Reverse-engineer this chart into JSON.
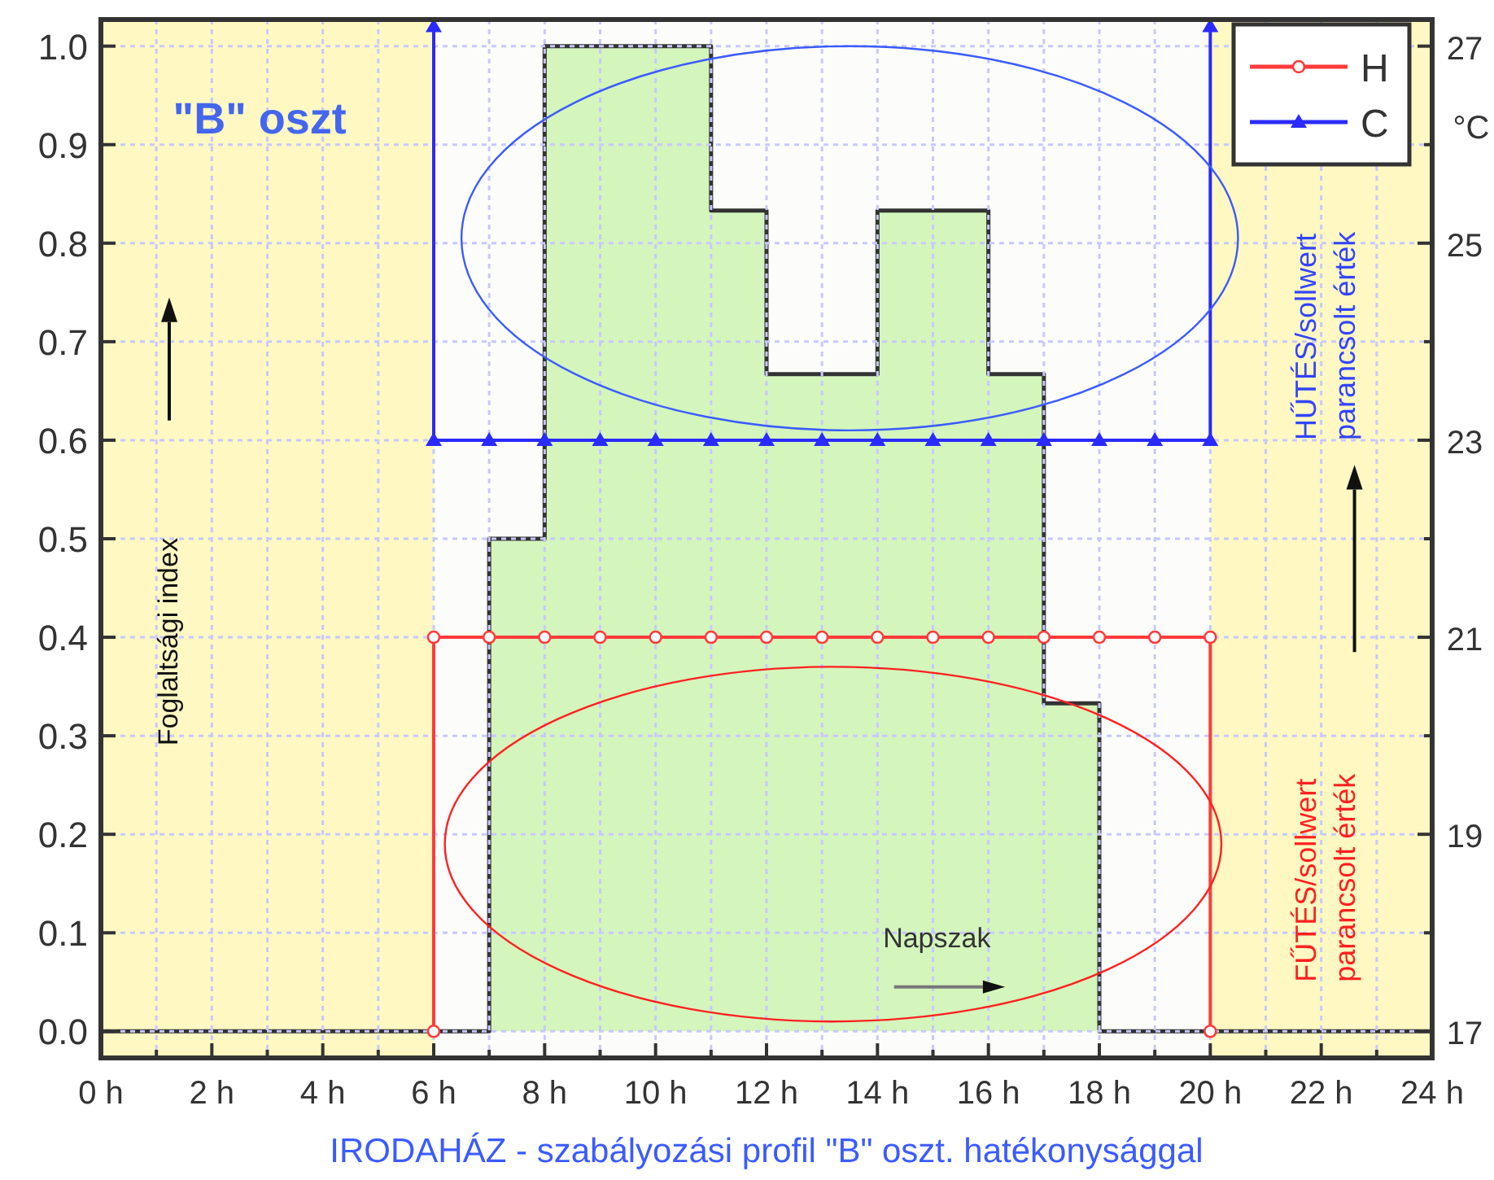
{
  "chart_data": {
    "type": "step",
    "xlabel": "IRODAHÁZ - szabályozási profil \"B\" oszt. hatékonysággal",
    "ylabel": "Foglaltsági index",
    "y2label": "°C",
    "xlim": [
      0,
      24
    ],
    "xticks": [
      {
        "value": 0,
        "label": "0 h"
      },
      {
        "value": 1,
        "label": null
      },
      {
        "value": 2,
        "label": "2 h"
      },
      {
        "value": 3,
        "label": null
      },
      {
        "value": 4,
        "label": "4 h"
      },
      {
        "value": 5,
        "label": null
      },
      {
        "value": 6,
        "label": "6 h"
      },
      {
        "value": 7,
        "label": null
      },
      {
        "value": 8,
        "label": "8 h"
      },
      {
        "value": 9,
        "label": null
      },
      {
        "value": 10,
        "label": "10 h"
      },
      {
        "value": 11,
        "label": null
      },
      {
        "value": 12,
        "label": "12 h"
      },
      {
        "value": 13,
        "label": null
      },
      {
        "value": 14,
        "label": "14 h"
      },
      {
        "value": 15,
        "label": null
      },
      {
        "value": 16,
        "label": "16 h"
      },
      {
        "value": 17,
        "label": null
      },
      {
        "value": 18,
        "label": "18 h"
      },
      {
        "value": 19,
        "label": null
      },
      {
        "value": 20,
        "label": "20 h"
      },
      {
        "value": 21,
        "label": null
      },
      {
        "value": 22,
        "label": "22 h"
      },
      {
        "value": 23,
        "label": null
      },
      {
        "value": 24,
        "label": "24 h"
      }
    ],
    "ylim": [
      -0.027,
      1.027
    ],
    "yticks": [
      {
        "value": 0,
        "label": "0.0"
      },
      {
        "value": 0.1,
        "label": "0.1"
      },
      {
        "value": 0.2,
        "label": "0.2"
      },
      {
        "value": 0.3,
        "label": "0.3"
      },
      {
        "value": 0.4,
        "label": "0.4"
      },
      {
        "value": 0.5,
        "label": "0.5"
      },
      {
        "value": 0.6,
        "label": "0.6"
      },
      {
        "value": 0.7,
        "label": "0.7"
      },
      {
        "value": 0.8,
        "label": "0.8"
      },
      {
        "value": 0.9,
        "label": "0.9"
      },
      {
        "value": 1,
        "label": "1.0"
      }
    ],
    "y2lim": [
      16.73,
      27.27
    ],
    "y2ticks": [
      17,
      {
        "value": 18,
        "label": null
      },
      19,
      {
        "value": 20,
        "label": null
      },
      21,
      {
        "value": 22,
        "label": null
      },
      23,
      {
        "value": 24,
        "label": null
      },
      25,
      {
        "value": 26,
        "label": null
      },
      27
    ],
    "grid": true,
    "legend": "top right",
    "bands": [
      {
        "axis": "x",
        "from": 6,
        "to": 20,
        "color": "#fcfdfb"
      }
    ],
    "series": [
      {
        "color": "#333333",
        "x": [
          0,
          7,
          8,
          11,
          12,
          14,
          16,
          17,
          18,
          24
        ],
        "values": [
          0,
          0.5,
          1,
          0.833,
          0.667,
          0.833,
          0.667,
          0.333,
          0,
          0
        ]
      },
      {
        "type": "line",
        "name": "H",
        "color": "#ff3b3b",
        "axis": "y2",
        "marker": "circle",
        "x": [
          6,
          6,
          7,
          8,
          9,
          10,
          11,
          12,
          13,
          14,
          15,
          16,
          17,
          18,
          19,
          20,
          20
        ],
        "values": [
          17,
          21,
          21,
          21,
          21,
          21,
          21,
          21,
          21,
          21,
          21,
          21,
          21,
          21,
          21,
          21,
          17
        ]
      },
      {
        "type": "line",
        "name": "C",
        "color": "#2a2aff",
        "axis": "y2",
        "marker": "triangle",
        "x": [
          6,
          6,
          7,
          8,
          9,
          10,
          11,
          12,
          13,
          14,
          15,
          16,
          17,
          18,
          19,
          20,
          20
        ],
        "values": [
          27.2,
          23,
          23,
          23,
          23,
          23,
          23,
          23,
          23,
          23,
          23,
          23,
          23,
          23,
          23,
          23,
          27.2
        ]
      }
    ],
    "annotations": [
      "\"B\" oszt",
      "HŰTÉS/sollwert parancsolt érték",
      "FŰTÉS/sollwert parancsolt érték",
      "Napszak"
    ]
  }
}
